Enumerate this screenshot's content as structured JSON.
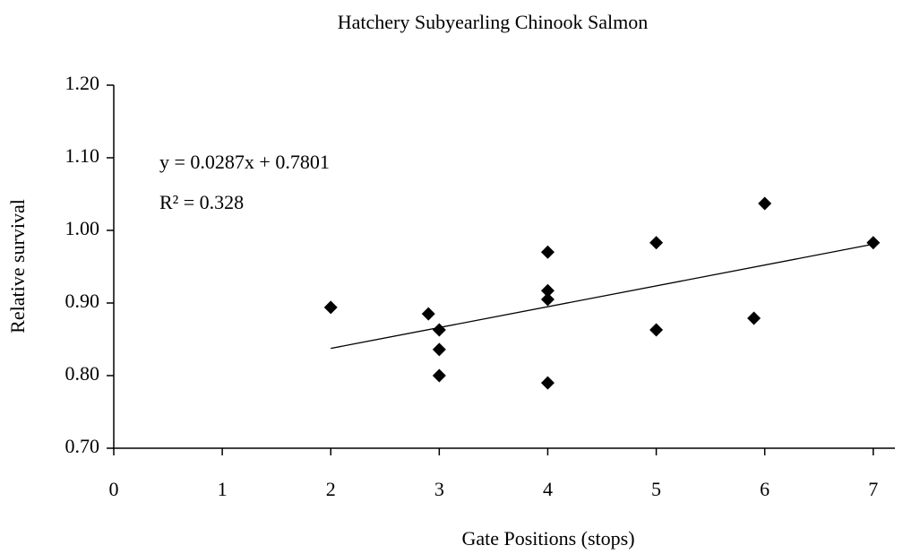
{
  "chart_data": {
    "type": "scatter",
    "title": "Hatchery Subyearling Chinook Salmon",
    "x_label": "Gate Positions (stops)",
    "y_label": "Relative survival",
    "series": [
      {
        "name": "Relative survival",
        "color": "#000000",
        "marker": "diamond",
        "x": [
          2,
          2.9,
          3,
          3,
          3,
          4,
          4,
          4,
          4,
          5,
          5,
          6,
          5.9,
          7
        ],
        "values": [
          0.894,
          0.885,
          0.863,
          0.836,
          0.8,
          0.97,
          0.917,
          0.905,
          0.79,
          0.983,
          0.863,
          1.037,
          0.879,
          0.983
        ]
      }
    ],
    "trendline": {
      "slope": 0.0287,
      "intercept": 0.7801,
      "color": "#000000",
      "labels": [
        "y = 0.0287x + 0.7801",
        "R² = 0.328"
      ]
    },
    "xlim": [
      0,
      7.2
    ],
    "xticks": [
      0,
      1,
      2,
      3,
      4,
      5,
      6,
      7
    ],
    "ylim": [
      0.7,
      1.2
    ],
    "yticks": [
      {
        "value": 0.7,
        "label": "0.70"
      },
      {
        "value": 0.8,
        "label": "0.80"
      },
      {
        "value": 0.9,
        "label": "0.90"
      },
      {
        "value": 1.0,
        "label": "1.00"
      },
      {
        "value": 1.1,
        "label": "1.10"
      },
      {
        "value": 1.2,
        "label": "1.20"
      }
    ],
    "grid": false
  }
}
